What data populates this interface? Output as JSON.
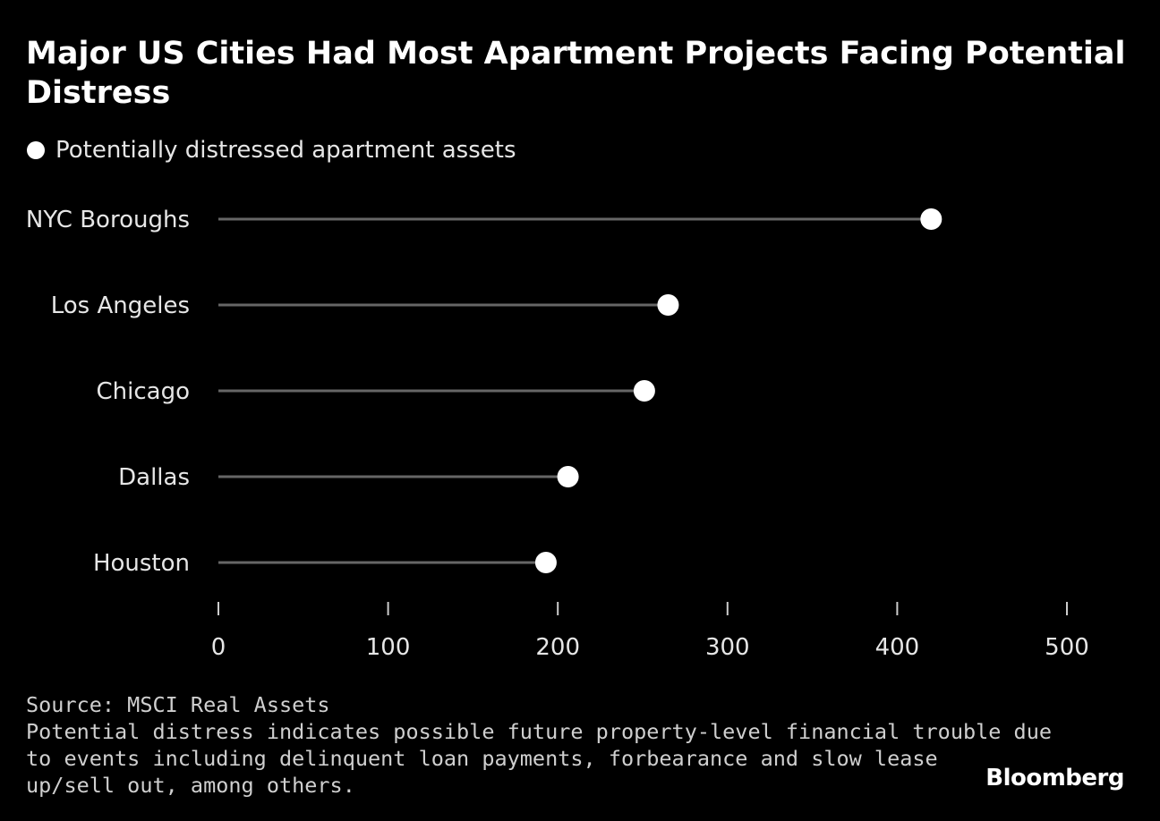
{
  "title": "Major US Cities Had Most Apartment Projects Facing Potential Distress",
  "legend": {
    "label": "Potentially distressed apartment assets",
    "color": "#ffffff"
  },
  "chart_data": {
    "type": "lollipop",
    "title": "Major US Cities Had Most Apartment Projects Facing Potential Distress",
    "series": [
      {
        "name": "Potentially distressed apartment assets",
        "values": [
          420,
          265,
          251,
          206,
          193
        ]
      }
    ],
    "categories": [
      "NYC Boroughs",
      "Los Angeles",
      "Chicago",
      "Dallas",
      "Houston"
    ],
    "values": [
      420,
      265,
      251,
      206,
      193
    ],
    "xlim": [
      0,
      500
    ],
    "xticks": [
      0,
      100,
      200,
      300,
      400,
      500
    ],
    "xtick_labels": [
      "0",
      "100",
      "200",
      "300",
      "400",
      "500"
    ],
    "xlabel": "",
    "ylabel": "",
    "grid": false,
    "stem_color": "#666666",
    "dot_color": "#ffffff",
    "axis_color": "#cccccc"
  },
  "footer": {
    "source": "Source: MSCI Real Assets",
    "note_lines": [
      "Potential distress indicates possible future property-level financial trouble due",
      "to events including delinquent loan payments, forbearance and slow lease",
      "up/sell out, among others."
    ]
  },
  "brand": "Bloomberg"
}
